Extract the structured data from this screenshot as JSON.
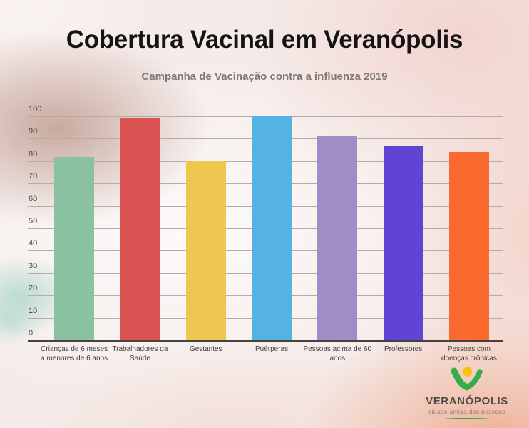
{
  "header": {
    "title": "Cobertura Vacinal em Veranópolis",
    "subtitle": "Campanha de Vacinação contra a influenza 2019"
  },
  "chart_data": {
    "type": "bar",
    "title": "Cobertura Vacinal em Veranópolis",
    "subtitle": "Campanha de Vacinação contra a influenza 2019",
    "categories": [
      "Crianças de 6 meses a menores de 6 anos",
      "Trabalhadores da Saúde",
      "Gestantes",
      "Puérperas",
      "Pessoas acima de 60 anos",
      "Professores",
      "Pessoas com doenças crônicas"
    ],
    "values": [
      82,
      99,
      80,
      100,
      91,
      87,
      84
    ],
    "bar_colors": [
      "#8ac1a1",
      "#db5252",
      "#edc74f",
      "#55b3e3",
      "#a18dc6",
      "#6045d4",
      "#fa6a2e"
    ],
    "xlabel": "",
    "ylabel": "",
    "ylim": [
      0,
      100
    ],
    "yticks": [
      0,
      10,
      20,
      30,
      40,
      50,
      60,
      70,
      80,
      90,
      100
    ],
    "grid": true,
    "legend": false,
    "grid_color": "#b3acaa",
    "axis_color": "#46403e"
  },
  "logo": {
    "name": "VERANÓPOLIS",
    "tagline": "cidade amiga das pessoas",
    "green": "#35ad4b",
    "yellow": "#f8c013"
  }
}
